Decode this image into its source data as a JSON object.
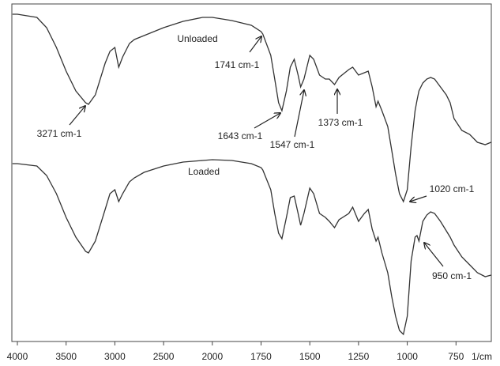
{
  "chart_data": {
    "type": "line",
    "x_label": "1/cm",
    "x": [
      4050,
      4000,
      3800,
      3700,
      3600,
      3500,
      3400,
      3300,
      3271,
      3200,
      3100,
      3050,
      3000,
      2960,
      2920,
      2850,
      2800,
      2700,
      2500,
      2300,
      2100,
      2000,
      1900,
      1800,
      1750,
      1741,
      1700,
      1680,
      1660,
      1643,
      1620,
      1600,
      1580,
      1560,
      1547,
      1530,
      1500,
      1480,
      1450,
      1420,
      1400,
      1373,
      1350,
      1300,
      1280,
      1250,
      1220,
      1200,
      1180,
      1160,
      1150,
      1130,
      1100,
      1080,
      1060,
      1040,
      1020,
      1000,
      980,
      960,
      950,
      940,
      920,
      900,
      880,
      860,
      830,
      800,
      780,
      760,
      720,
      680,
      640,
      600,
      570
    ],
    "series": [
      {
        "color": "#333333",
        "values": [
          414,
          414,
          410,
          397,
          372,
          342,
          317,
          302,
          300,
          312,
          352,
          367,
          372,
          347,
          360,
          377,
          382,
          387,
          397,
          405,
          410,
          410,
          406,
          400,
          392,
          389,
          362,
          332,
          302,
          292,
          317,
          347,
          357,
          337,
          322,
          332,
          362,
          357,
          337,
          332,
          332,
          325,
          334,
          344,
          347,
          337,
          340,
          342,
          322,
          297,
          304,
          292,
          272,
          242,
          212,
          187,
          177,
          192,
          247,
          292,
          305,
          317,
          327,
          332,
          334,
          332,
          322,
          312,
          302,
          282,
          267,
          262,
          252,
          249,
          252
        ]
      },
      {
        "color": "#333333",
        "values": [
          225,
          225,
          222,
          210,
          187,
          157,
          132,
          114,
          112,
          127,
          167,
          187,
          192,
          177,
          187,
          202,
          207,
          214,
          222,
          227,
          229,
          230,
          229,
          225,
          220,
          217,
          192,
          162,
          137,
          130,
          157,
          182,
          184,
          162,
          147,
          162,
          194,
          187,
          162,
          157,
          152,
          144,
          154,
          162,
          170,
          152,
          162,
          167,
          142,
          127,
          132,
          112,
          87,
          57,
          32,
          14,
          9,
          32,
          102,
          132,
          134,
          127,
          152,
          160,
          164,
          162,
          152,
          140,
          132,
          122,
          107,
          97,
          87,
          82,
          84
        ]
      }
    ],
    "xlim": [
      4050,
      570
    ],
    "xticks": [
      4000,
      3500,
      3000,
      2500,
      2000,
      1750,
      1500,
      1250,
      1000,
      750
    ],
    "ylim": [
      0,
      427
    ],
    "annotations": [
      "Unloaded",
      "Loaded",
      "3271 cm-1",
      "1741 cm-1",
      "1643 cm-1",
      "1547 cm-1",
      "1373 cm-1",
      "1020 cm-1",
      "950 cm-1"
    ]
  }
}
